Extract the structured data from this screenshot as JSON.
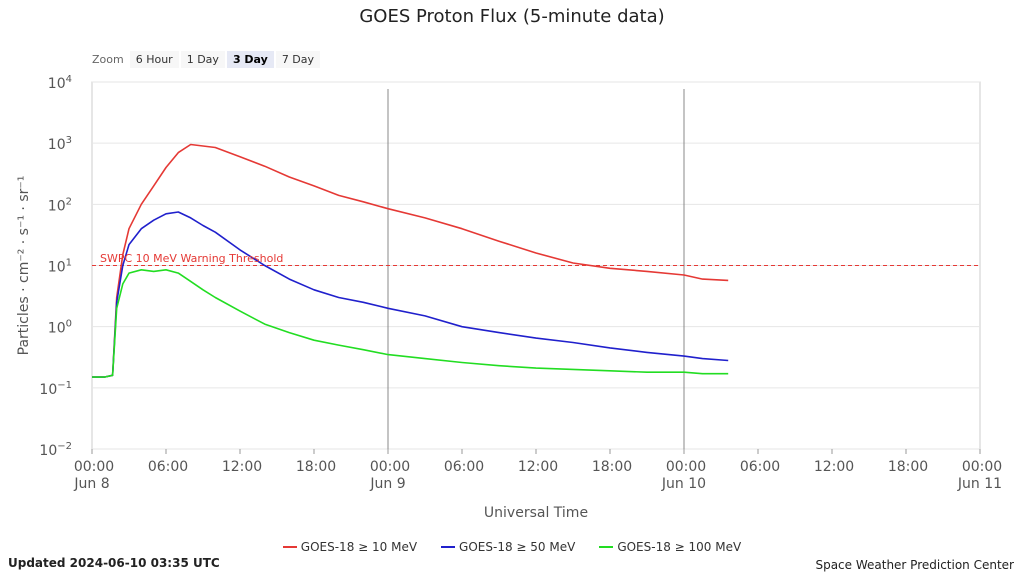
{
  "chart_data": {
    "type": "line",
    "title": "GOES Proton Flux (5-minute data)",
    "xlabel": "Universal Time",
    "ylabel": "Particles · cm⁻² · s⁻¹ · sr⁻¹",
    "y_scale": "log",
    "ylim": [
      0.01,
      10000
    ],
    "xlim": [
      "2024-06-08 00:00",
      "2024-06-11 00:00"
    ],
    "y_ticks": [
      {
        "base": "10",
        "exp": "4"
      },
      {
        "base": "10",
        "exp": "3"
      },
      {
        "base": "10",
        "exp": "2"
      },
      {
        "base": "10",
        "exp": "1"
      },
      {
        "base": "10",
        "exp": "0"
      },
      {
        "base": "10",
        "exp": "−1"
      },
      {
        "base": "10",
        "exp": "−2"
      }
    ],
    "x_ticks": [
      {
        "time": "00:00",
        "date": "Jun 8"
      },
      {
        "time": "06:00",
        "date": ""
      },
      {
        "time": "12:00",
        "date": ""
      },
      {
        "time": "18:00",
        "date": ""
      },
      {
        "time": "00:00",
        "date": "Jun 9"
      },
      {
        "time": "06:00",
        "date": ""
      },
      {
        "time": "12:00",
        "date": ""
      },
      {
        "time": "18:00",
        "date": ""
      },
      {
        "time": "00:00",
        "date": "Jun 10"
      },
      {
        "time": "06:00",
        "date": ""
      },
      {
        "time": "12:00",
        "date": ""
      },
      {
        "time": "18:00",
        "date": ""
      },
      {
        "time": "00:00",
        "date": "Jun 11"
      }
    ],
    "day_markers": [
      "2024-06-09 00:00",
      "2024-06-10 00:00"
    ],
    "threshold": {
      "value": 10,
      "label": "SWPC 10 MeV Warning Threshold",
      "color": "#e53935"
    },
    "x_times": [
      "2024-06-08 00:00",
      "2024-06-08 01:00",
      "2024-06-08 01:40",
      "2024-06-08 02:00",
      "2024-06-08 02:30",
      "2024-06-08 03:00",
      "2024-06-08 04:00",
      "2024-06-08 05:00",
      "2024-06-08 06:00",
      "2024-06-08 07:00",
      "2024-06-08 08:00",
      "2024-06-08 09:00",
      "2024-06-08 10:00",
      "2024-06-08 12:00",
      "2024-06-08 14:00",
      "2024-06-08 16:00",
      "2024-06-08 18:00",
      "2024-06-08 20:00",
      "2024-06-08 22:00",
      "2024-06-09 00:00",
      "2024-06-09 03:00",
      "2024-06-09 06:00",
      "2024-06-09 09:00",
      "2024-06-09 12:00",
      "2024-06-09 15:00",
      "2024-06-09 18:00",
      "2024-06-09 21:00",
      "2024-06-10 00:00",
      "2024-06-10 01:30",
      "2024-06-10 03:35"
    ],
    "series": [
      {
        "name": "GOES-18 ≥ 10 MeV",
        "color": "#e53935",
        "values": [
          0.15,
          0.15,
          0.16,
          3,
          15,
          40,
          100,
          200,
          400,
          700,
          950,
          900,
          850,
          600,
          420,
          280,
          200,
          140,
          110,
          85,
          60,
          40,
          25,
          16,
          11,
          9,
          8,
          7,
          6,
          5.7
        ]
      },
      {
        "name": "GOES-18 ≥ 50 MeV",
        "color": "#2020cc",
        "values": [
          0.15,
          0.15,
          0.16,
          2.5,
          10,
          22,
          40,
          55,
          70,
          75,
          60,
          45,
          35,
          18,
          10,
          6,
          4,
          3,
          2.5,
          2,
          1.5,
          1,
          0.8,
          0.65,
          0.55,
          0.45,
          0.38,
          0.33,
          0.3,
          0.28
        ]
      },
      {
        "name": "GOES-18 ≥ 100 MeV",
        "color": "#22dd22",
        "values": [
          0.15,
          0.15,
          0.16,
          2,
          5,
          7.5,
          8.5,
          8,
          8.5,
          7.5,
          5.5,
          4,
          3,
          1.8,
          1.1,
          0.8,
          0.6,
          0.5,
          0.42,
          0.35,
          0.3,
          0.26,
          0.23,
          0.21,
          0.2,
          0.19,
          0.18,
          0.18,
          0.17,
          0.17
        ]
      }
    ]
  },
  "zoom": {
    "label": "Zoom",
    "options": [
      "6 Hour",
      "1 Day",
      "3 Day",
      "7 Day"
    ],
    "active": "3 Day"
  },
  "footer": {
    "updated": "Updated 2024-06-10 03:35 UTC",
    "credit": "Space Weather Prediction Center"
  }
}
